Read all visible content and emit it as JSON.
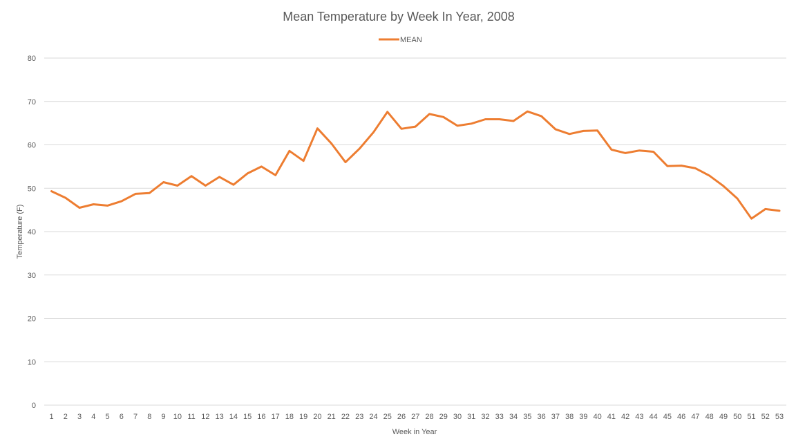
{
  "chart_data": {
    "type": "line",
    "title": "Mean Temperature by Week In Year, 2008",
    "xlabel": "Week in Year",
    "ylabel": "Temperature (F)",
    "ylim": [
      0,
      80
    ],
    "yticks": [
      0,
      10,
      20,
      30,
      40,
      50,
      60,
      70,
      80
    ],
    "grid": true,
    "legend_position": "top-center",
    "categories": [
      "1",
      "2",
      "3",
      "4",
      "5",
      "6",
      "7",
      "8",
      "9",
      "10",
      "11",
      "12",
      "13",
      "14",
      "15",
      "16",
      "17",
      "18",
      "19",
      "20",
      "21",
      "22",
      "23",
      "24",
      "25",
      "26",
      "27",
      "28",
      "29",
      "30",
      "31",
      "32",
      "33",
      "34",
      "35",
      "36",
      "37",
      "38",
      "39",
      "40",
      "41",
      "42",
      "43",
      "44",
      "45",
      "46",
      "47",
      "48",
      "49",
      "50",
      "51",
      "52",
      "53"
    ],
    "series": [
      {
        "name": "MEAN",
        "color": "#ED7D31",
        "values": [
          49.3,
          47.8,
          45.5,
          46.3,
          46.0,
          47.0,
          48.7,
          48.9,
          51.4,
          50.6,
          52.8,
          50.6,
          52.6,
          50.8,
          53.4,
          55.0,
          53.0,
          58.6,
          56.3,
          63.8,
          60.3,
          56.0,
          59.1,
          62.9,
          67.6,
          63.7,
          64.2,
          67.1,
          66.4,
          64.4,
          64.9,
          65.9,
          65.9,
          65.5,
          67.7,
          66.6,
          63.6,
          62.5,
          63.2,
          63.3,
          58.9,
          58.1,
          58.7,
          58.4,
          55.1,
          55.2,
          54.6,
          52.9,
          50.5,
          47.6,
          43.0,
          45.2,
          44.8
        ]
      }
    ]
  }
}
